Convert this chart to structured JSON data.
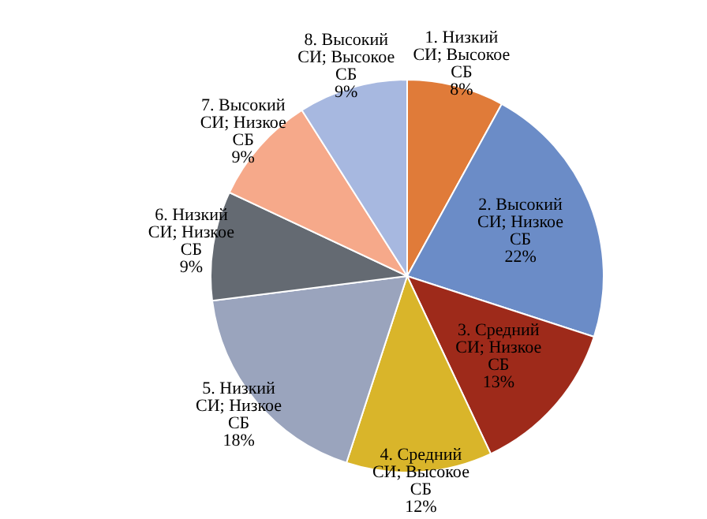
{
  "chart_data": {
    "type": "pie",
    "categories": [
      "1.  Низкий СИ; Высокое СБ",
      "2. Высокий СИ; Низкое  СБ",
      "3. Средний СИ; Низкое СБ",
      "4. Средний СИ; Высокое СБ",
      "5. Низкий СИ; Низкое СБ",
      "6. Низкий СИ; Низкое СБ",
      "7. Высокий СИ; Низкое СБ",
      "8. Высокий СИ; Высокое СБ"
    ],
    "values": [
      8,
      22,
      13,
      12,
      18,
      9,
      9,
      9
    ],
    "colors": [
      "#e07b39",
      "#6b8cc7",
      "#9e2a1a",
      "#d9b52a",
      "#9aa4bd",
      "#646a72",
      "#f6a98a",
      "#a7b8e0"
    ],
    "value_labels": [
      "8%",
      "22%",
      "13%",
      "12%",
      "18%",
      "9%",
      "9%",
      "9%"
    ],
    "legend": false
  }
}
